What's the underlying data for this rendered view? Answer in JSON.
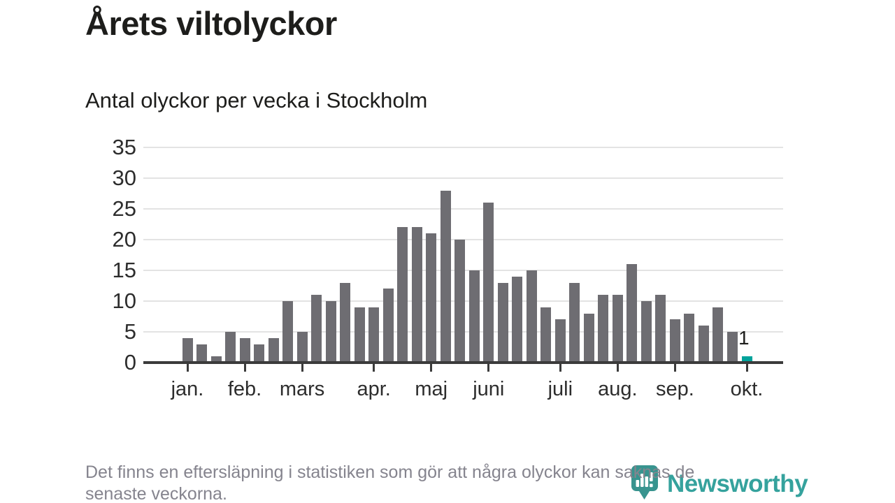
{
  "title": "Årets viltolyckor",
  "subtitle": "Antal olyckor per vecka i Stockholm",
  "note": {
    "line1": "Det finns en eftersläpning i statistiken som gör att några olyckor kan saknas de",
    "line2": "senaste veckorna."
  },
  "logo": {
    "text": "Newsworthy",
    "icon": "newsworthy-pin-barchart-icon",
    "text_color": "#35a29d",
    "icon_color": "#38948f"
  },
  "chart_data": {
    "type": "bar",
    "title": "Årets viltolyckor",
    "subtitle": "Antal olyckor per vecka i Stockholm",
    "xlabel": "",
    "ylabel": "",
    "x_unit": "vecka",
    "x": [
      1,
      2,
      3,
      4,
      5,
      6,
      7,
      8,
      9,
      10,
      11,
      12,
      13,
      14,
      15,
      16,
      17,
      18,
      19,
      20,
      21,
      22,
      23,
      24,
      25,
      26,
      27,
      28,
      29,
      30,
      31,
      32,
      33,
      34,
      35,
      36,
      37,
      38,
      39,
      40
    ],
    "values": [
      4,
      3,
      1,
      5,
      4,
      3,
      4,
      10,
      5,
      11,
      10,
      13,
      9,
      9,
      12,
      22,
      22,
      21,
      28,
      20,
      15,
      26,
      13,
      14,
      15,
      9,
      7,
      13,
      8,
      11,
      11,
      16,
      10,
      11,
      7,
      8,
      6,
      9,
      5,
      1
    ],
    "ylim": [
      0,
      35
    ],
    "yticks": [
      0,
      5,
      10,
      15,
      20,
      25,
      30,
      35
    ],
    "grid": "horizontal",
    "legend": "none",
    "bar_color": "#6e6d72",
    "highlight_last": true,
    "highlight_color": "#00a39b",
    "highlight_value_label": "1",
    "months": [
      {
        "label": "jan.",
        "week": 1
      },
      {
        "label": "feb.",
        "week": 5
      },
      {
        "label": "mars",
        "week": 9
      },
      {
        "label": "apr.",
        "week": 14
      },
      {
        "label": "maj",
        "week": 18
      },
      {
        "label": "juni",
        "week": 22
      },
      {
        "label": "juli",
        "week": 27
      },
      {
        "label": "aug.",
        "week": 31
      },
      {
        "label": "sep.",
        "week": 35
      },
      {
        "label": "okt.",
        "week": 40
      }
    ]
  }
}
